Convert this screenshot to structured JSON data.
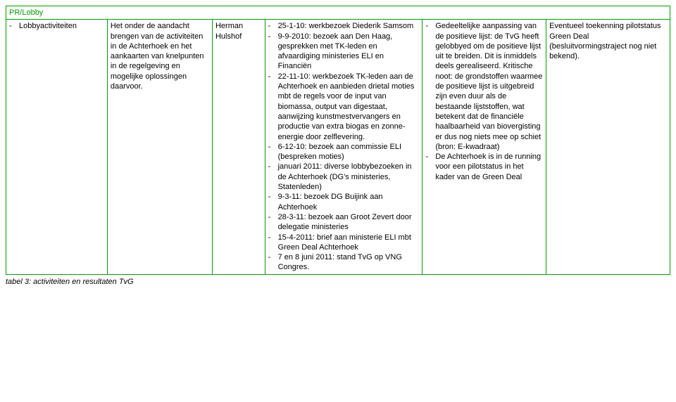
{
  "header": {
    "title": "PR/Lobby"
  },
  "col1": {
    "items": [
      "Lobbyactiviteiten"
    ]
  },
  "col2": {
    "text": "Het onder de aandacht brengen van de activiteiten in de Achterhoek en het aankaarten van knelpunten in de regelgeving en mogelijke oplossingen daarvoor."
  },
  "col3": {
    "line1": "Herman",
    "line2": "Hulshof"
  },
  "col4": {
    "items": [
      "25-1-10: werkbezoek Diederik Samsom",
      "9-9-2010: bezoek aan Den Haag, gesprekken met TK-leden en afvaardiging ministeries ELI en Financiën",
      "22-11-10: werkbezoek TK-leden aan de Achterhoek en aanbieden drietal moties mbt de regels voor de input van biomassa, output van digestaat, aanwijzing kunstmestvervangers en productie van extra biogas en zonne-energie door zelflevering.",
      "6-12-10: bezoek aan commissie ELI (bespreken moties)",
      "januari 2011: diverse lobbybezoeken in de Achterhoek (DG's ministeries, Statenleden)",
      "9-3-11: bezoek DG Buijink aan Achterhoek",
      "28-3-11: bezoek aan Groot Zevert door delegatie ministeries",
      "15-4-2011: brief aan ministerie ELI mbt Green Deal Achterhoek",
      "7 en 8 juni 2011: stand TvG op VNG Congres."
    ]
  },
  "col5": {
    "items": [
      "Gedeeltelijke aanpassing van de positieve lijst: de TvG heeft gelobbyed om de positieve lijst uit te breiden. Dit is inmiddels deels gerealiseerd. Kritische noot: de grondstoffen waarmee de positieve lijst is uitgebreid zijn even duur als de bestaande lijststoffen, wat betekent dat de financiële haalbaarheid van biovergisting er dus nog niets mee op schiet (bron: E-kwadraat)",
      "De Achterhoek is in de running voor een pilotstatus in het kader van de Green Deal"
    ]
  },
  "col6": {
    "text": "Eventueel toekenning pilotstatus Green Deal (besluitvormingstraject nog niet bekend)."
  },
  "caption": "tabel 3: activiteiten en resultaten TvG"
}
